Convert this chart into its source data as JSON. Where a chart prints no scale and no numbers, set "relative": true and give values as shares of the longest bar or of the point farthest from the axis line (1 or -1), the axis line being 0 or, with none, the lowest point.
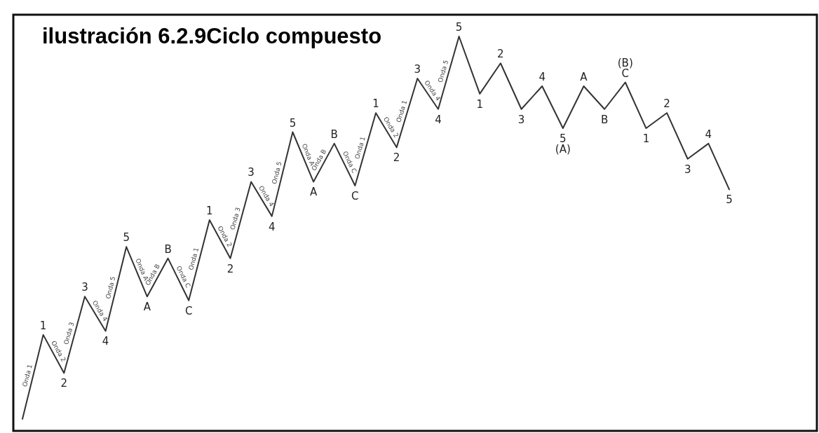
{
  "chart_data": {
    "type": "line",
    "title": "ilustración 6.2.9Ciclo compuesto",
    "relative": true,
    "marker": "none",
    "line_style": "solid",
    "categories": [
      null,
      null,
      null,
      null,
      null,
      null,
      null,
      null,
      null,
      null,
      null,
      null,
      null,
      null,
      null,
      null,
      null,
      null,
      null,
      null,
      null,
      null,
      null,
      null,
      null,
      null,
      null,
      null,
      null,
      null,
      null,
      null,
      null,
      null,
      null
    ],
    "series": [
      {
        "color": "#333333",
        "values": [
          0,
          0.22,
          0.12,
          0.32,
          0.23,
          0.45,
          0.32,
          0.42,
          0.31,
          0.52,
          0.42,
          0.62,
          0.53,
          0.75,
          0.62,
          0.72,
          0.61,
          0.8,
          0.71,
          0.89,
          0.81,
          1.0,
          0.85,
          0.93,
          0.81,
          0.87,
          0.76,
          0.87,
          0.81,
          0.88,
          0.76,
          0.8,
          0.68,
          0.72,
          0.6
        ]
      }
    ],
    "annotations": [
      "1",
      "2",
      "3",
      "4",
      "5",
      "A",
      "B",
      "C",
      "1",
      "2",
      "3",
      "4",
      "5",
      "A",
      "B",
      "C",
      "1",
      "2",
      "3",
      "4",
      "5",
      "1",
      "2",
      "3",
      "4",
      "5\n(A)",
      "A",
      "B",
      "(B)\nC",
      "1",
      "2",
      "3",
      "4",
      "5",
      "Onda 1",
      "Onda 2",
      "Onda 3",
      "Onda 4",
      "Onda 5",
      "Onda A",
      "Onda B",
      "Onda C",
      "Onda 1",
      "Onda 2",
      "Onda 3",
      "Onda 4",
      "Onda 5",
      "Onda A",
      "Onda B",
      "Onda C",
      "Onda 1",
      "Onda 2",
      "Onda 1",
      "Onda 4",
      "Onda 5"
    ]
  }
}
